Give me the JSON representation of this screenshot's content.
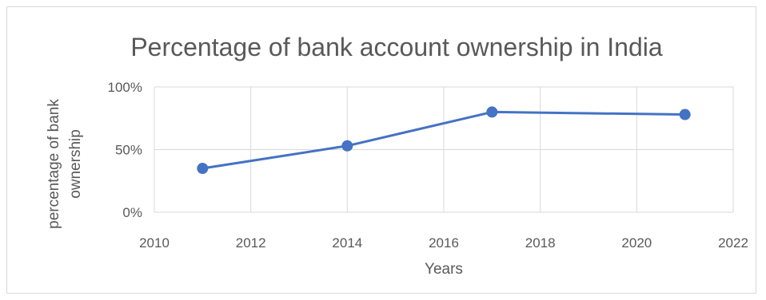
{
  "chart_data": {
    "type": "scatter",
    "title": "Percentage of bank account ownership in India",
    "xlabel": "Years",
    "ylabel_lines": [
      "percentage of bank",
      "ownership"
    ],
    "xlim": [
      2010,
      2022
    ],
    "ylim": [
      0,
      1
    ],
    "x_ticks": [
      2010,
      2012,
      2014,
      2016,
      2018,
      2020,
      2022
    ],
    "y_ticks": [
      0,
      0.5,
      1
    ],
    "y_tick_labels": [
      "0%",
      "50%",
      "100%"
    ],
    "grid": true,
    "series": [
      {
        "x": [
          2011,
          2014,
          2017,
          2021
        ],
        "y": [
          0.35,
          0.53,
          0.8,
          0.78
        ],
        "color": "#4472c4",
        "line": true,
        "markers": true
      }
    ]
  }
}
